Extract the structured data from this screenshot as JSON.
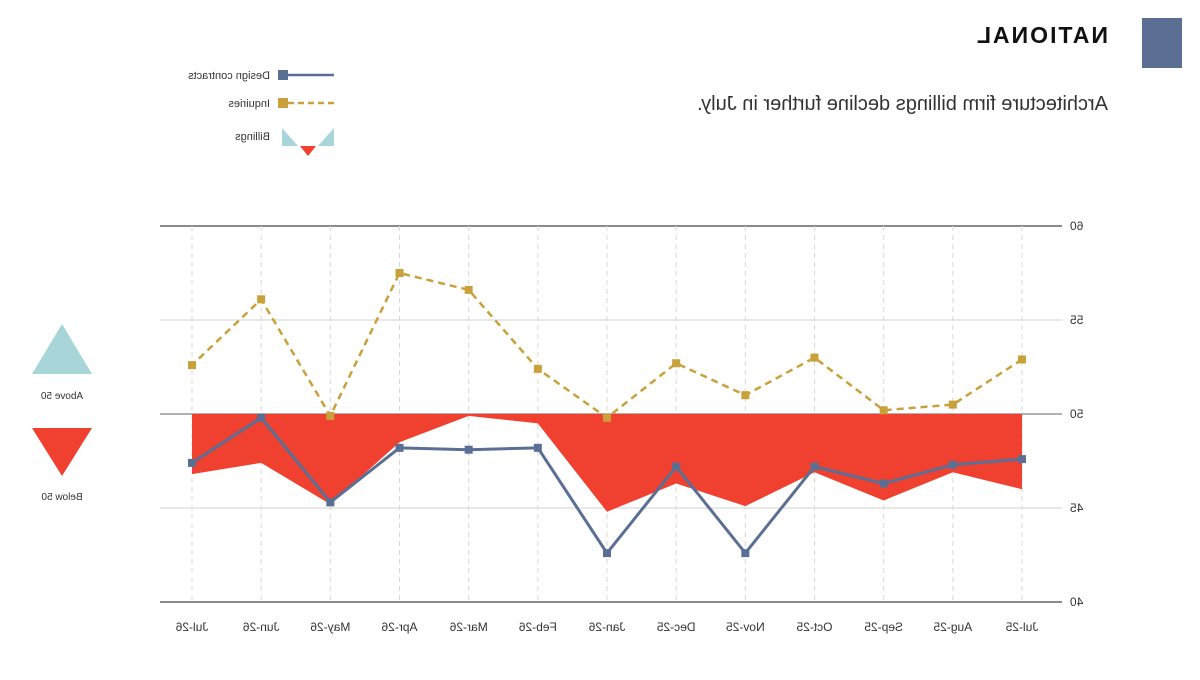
{
  "header": {
    "brand": "NATIONAL",
    "title": "Architecture firm billings decline further in July."
  },
  "legend": {
    "design_label": "Design contracts",
    "inquiries_label": "Inquiries",
    "billings_label": "Billings"
  },
  "side_legend": {
    "above_label": "Above 50",
    "below_label": "Below 50"
  },
  "colors": {
    "design": "#5b6f95",
    "inquiries": "#c9a13a",
    "billings_below": "#f0402f",
    "billings_above": "#a8d5d8",
    "brand_icon": "#5b6f95"
  },
  "chart_data": {
    "type": "line",
    "categories": [
      "Jul-25",
      "Aug-25",
      "Sep-25",
      "Oct-25",
      "Nov-25",
      "Dec-25",
      "Jan-26",
      "Feb-26",
      "Mar-26",
      "Apr-26",
      "May-26",
      "Jun-26",
      "Jul-26"
    ],
    "series": [
      {
        "name": "Billings",
        "type": "area",
        "baseline": 50,
        "values": [
          46.0,
          46.9,
          45.4,
          46.9,
          45.1,
          46.3,
          44.8,
          49.5,
          49.9,
          48.5,
          45.2,
          47.4,
          46.8
        ]
      },
      {
        "name": "Design contracts",
        "type": "line",
        "values": [
          47.6,
          47.3,
          46.3,
          47.2,
          42.6,
          47.2,
          42.6,
          48.2,
          48.1,
          48.2,
          45.3,
          49.8,
          47.4
        ]
      },
      {
        "name": "Inquiries",
        "type": "line",
        "style": "dashed",
        "values": [
          52.9,
          50.5,
          50.2,
          53.0,
          51.0,
          52.7,
          49.8,
          52.4,
          56.6,
          57.5,
          49.9,
          56.1,
          52.6
        ]
      }
    ],
    "yticks": [
      40,
      45,
      50,
      55,
      60
    ],
    "ylim": [
      40,
      60
    ],
    "baseline": 50,
    "grid": true,
    "legend_position": "top-left"
  }
}
